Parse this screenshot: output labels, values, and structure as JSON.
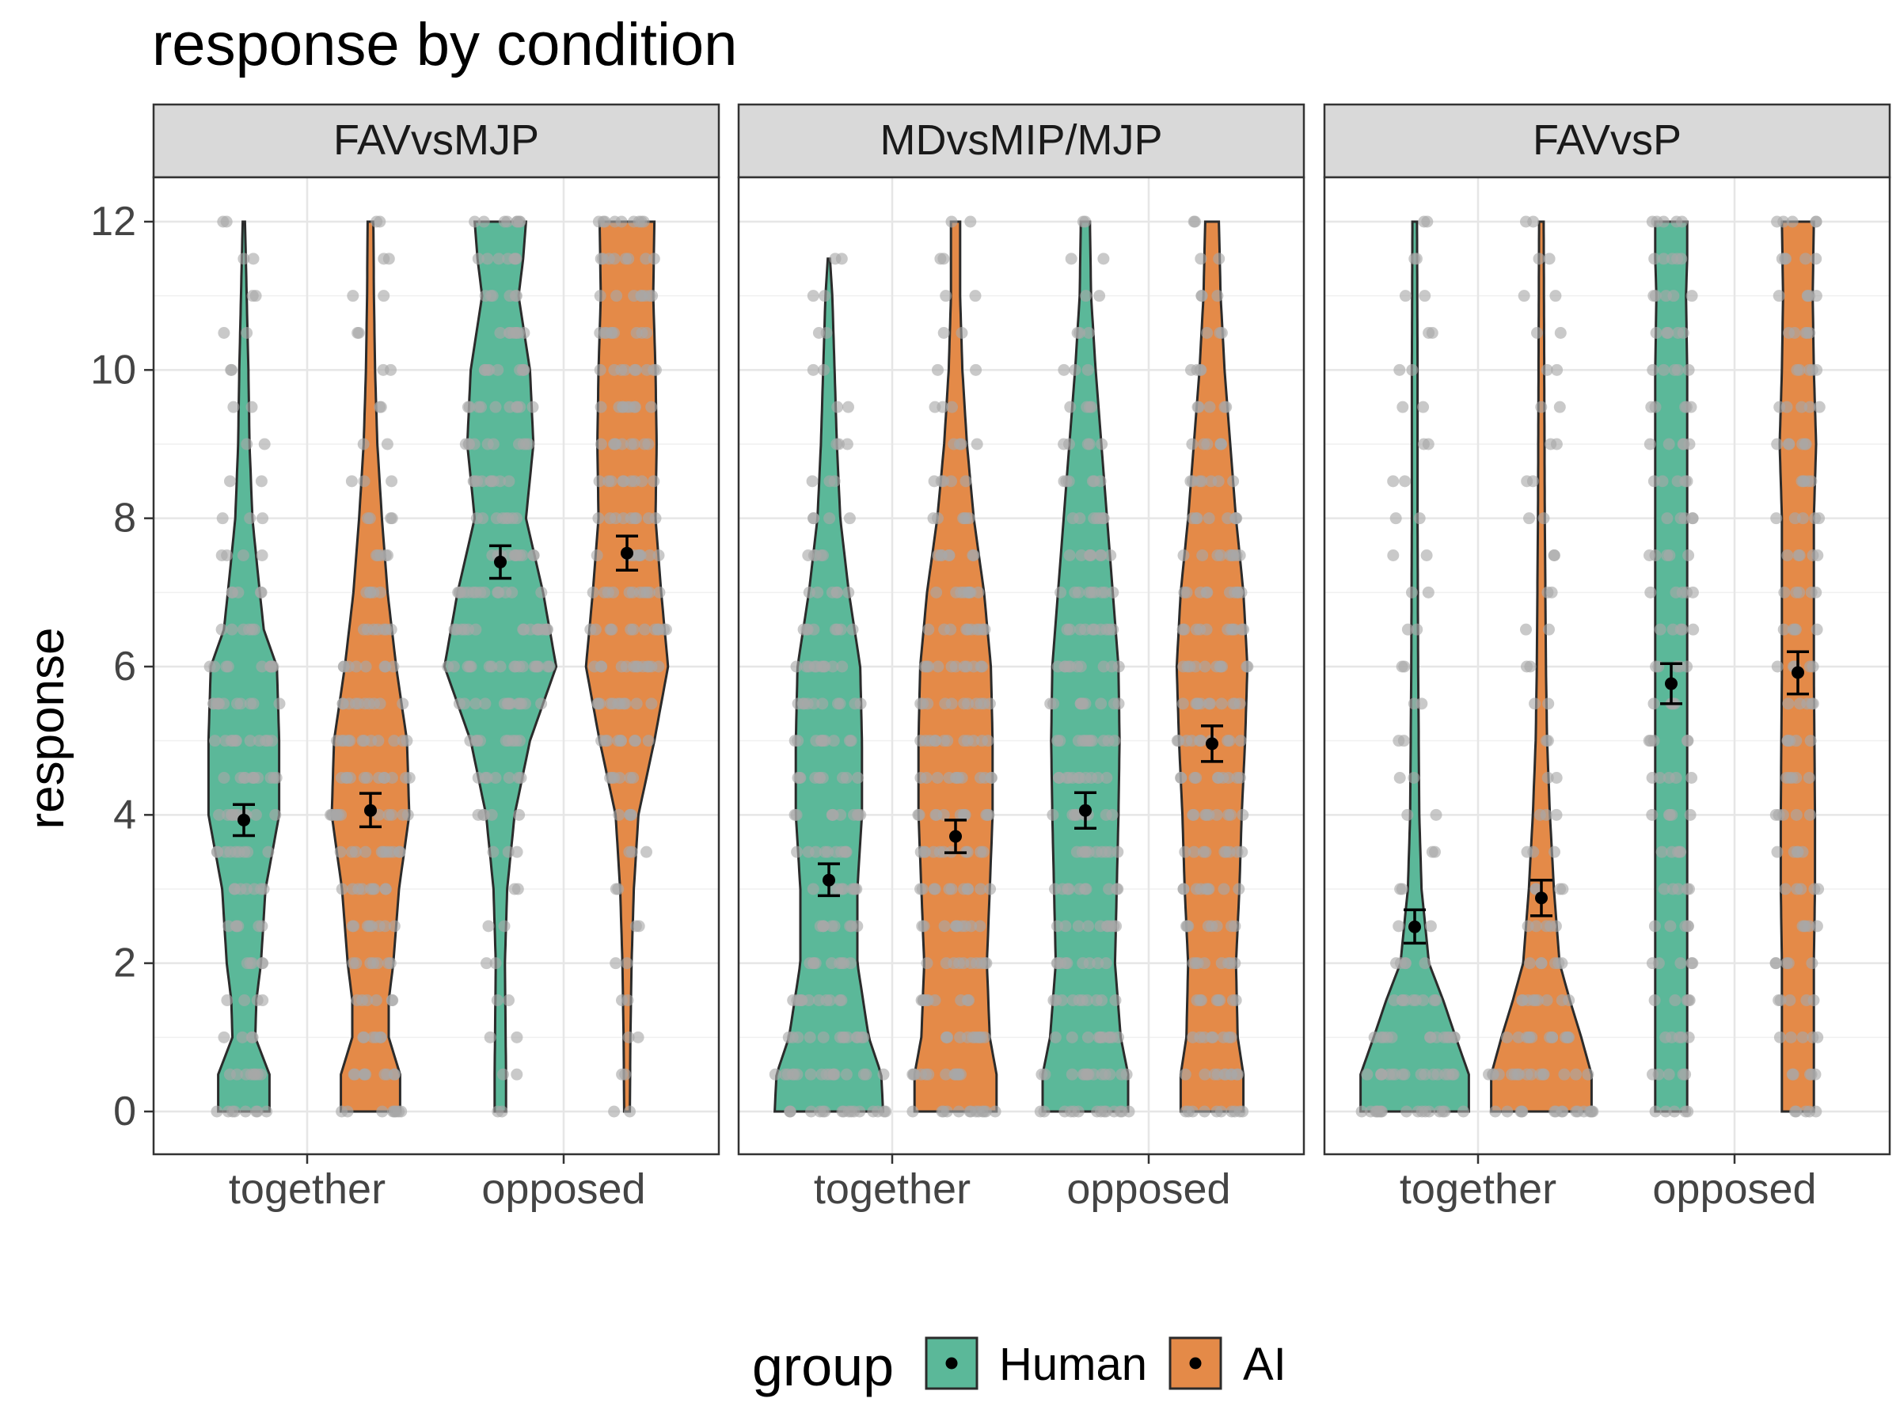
{
  "chart_data": {
    "type": "violin",
    "title": "response by condition",
    "xlabel": "",
    "ylabel": "response",
    "ylim": [
      -0.6,
      12.6
    ],
    "yticks": [
      0,
      2,
      4,
      6,
      8,
      10,
      12
    ],
    "categories": [
      "together",
      "opposed"
    ],
    "grid": true,
    "legend": {
      "title": "group",
      "placement": "bottom",
      "entries": [
        {
          "name": "Human",
          "color": "#5bb899"
        },
        {
          "name": "AI",
          "color": "#e48a48"
        }
      ]
    },
    "colors": {
      "Human": "#5bb899",
      "AI": "#e48a48",
      "outline": "#2b2b2b",
      "points": "#a8a8a8",
      "strip": "#d9d9d9"
    },
    "facets": [
      {
        "label": "FAVvsMJP",
        "series": [
          {
            "category": "together",
            "group": "Human",
            "mean": 3.93,
            "ci_low": 3.72,
            "ci_high": 4.14,
            "density": [
              [
                0,
                0.45
              ],
              [
                0.5,
                0.45
              ],
              [
                1,
                0.2
              ],
              [
                1.5,
                0.22
              ],
              [
                2,
                0.3
              ],
              [
                3,
                0.38
              ],
              [
                4,
                0.62
              ],
              [
                5,
                0.62
              ],
              [
                6,
                0.58
              ],
              [
                6.5,
                0.35
              ],
              [
                7,
                0.28
              ],
              [
                8,
                0.15
              ],
              [
                9,
                0.1
              ],
              [
                10,
                0.08
              ],
              [
                11,
                0.05
              ],
              [
                12,
                0.02
              ]
            ]
          },
          {
            "category": "together",
            "group": "AI",
            "mean": 4.06,
            "ci_low": 3.84,
            "ci_high": 4.29,
            "density": [
              [
                0,
                0.52
              ],
              [
                0.5,
                0.52
              ],
              [
                1,
                0.32
              ],
              [
                1.5,
                0.32
              ],
              [
                2,
                0.4
              ],
              [
                3,
                0.5
              ],
              [
                4,
                0.68
              ],
              [
                5,
                0.64
              ],
              [
                6,
                0.45
              ],
              [
                7,
                0.3
              ],
              [
                8,
                0.2
              ],
              [
                9,
                0.12
              ],
              [
                10,
                0.08
              ],
              [
                11,
                0.06
              ],
              [
                12,
                0.05
              ]
            ]
          },
          {
            "category": "opposed",
            "group": "Human",
            "mean": 7.41,
            "ci_low": 7.19,
            "ci_high": 7.63,
            "density": [
              [
                0,
                0.1
              ],
              [
                0.5,
                0.1
              ],
              [
                2,
                0.08
              ],
              [
                3,
                0.12
              ],
              [
                4,
                0.25
              ],
              [
                5,
                0.52
              ],
              [
                6,
                0.98
              ],
              [
                7,
                0.75
              ],
              [
                8,
                0.45
              ],
              [
                9,
                0.58
              ],
              [
                10,
                0.52
              ],
              [
                11,
                0.32
              ],
              [
                11.5,
                0.4
              ],
              [
                12,
                0.45
              ]
            ]
          },
          {
            "category": "opposed",
            "group": "AI",
            "mean": 7.53,
            "ci_low": 7.3,
            "ci_high": 7.76,
            "density": [
              [
                0,
                0.05
              ],
              [
                1,
                0.06
              ],
              [
                2,
                0.08
              ],
              [
                3,
                0.12
              ],
              [
                4,
                0.2
              ],
              [
                5,
                0.48
              ],
              [
                6,
                0.72
              ],
              [
                7,
                0.6
              ],
              [
                8,
                0.5
              ],
              [
                9,
                0.52
              ],
              [
                10,
                0.5
              ],
              [
                11,
                0.46
              ],
              [
                12,
                0.48
              ]
            ]
          }
        ]
      },
      {
        "label": "MDvsMIP/MJP",
        "series": [
          {
            "category": "together",
            "group": "Human",
            "mean": 3.12,
            "ci_low": 2.91,
            "ci_high": 3.34,
            "density": [
              [
                0,
                0.95
              ],
              [
                0.5,
                0.92
              ],
              [
                1,
                0.7
              ],
              [
                2,
                0.5
              ],
              [
                3,
                0.5
              ],
              [
                4,
                0.58
              ],
              [
                5,
                0.58
              ],
              [
                6,
                0.55
              ],
              [
                7,
                0.35
              ],
              [
                8,
                0.2
              ],
              [
                9,
                0.14
              ],
              [
                10,
                0.1
              ],
              [
                11,
                0.06
              ],
              [
                11.5,
                0.02
              ]
            ]
          },
          {
            "category": "together",
            "group": "AI",
            "mean": 3.71,
            "ci_low": 3.49,
            "ci_high": 3.93,
            "density": [
              [
                0,
                0.72
              ],
              [
                0.5,
                0.72
              ],
              [
                1,
                0.6
              ],
              [
                2,
                0.55
              ],
              [
                3,
                0.6
              ],
              [
                4,
                0.65
              ],
              [
                5,
                0.65
              ],
              [
                6,
                0.62
              ],
              [
                7,
                0.5
              ],
              [
                8,
                0.32
              ],
              [
                9,
                0.2
              ],
              [
                10,
                0.12
              ],
              [
                11,
                0.08
              ],
              [
                12,
                0.08
              ]
            ]
          },
          {
            "category": "opposed",
            "group": "Human",
            "mean": 4.06,
            "ci_low": 3.82,
            "ci_high": 4.3,
            "density": [
              [
                0,
                0.75
              ],
              [
                0.5,
                0.75
              ],
              [
                1,
                0.62
              ],
              [
                2,
                0.52
              ],
              [
                3,
                0.55
              ],
              [
                4,
                0.58
              ],
              [
                5,
                0.6
              ],
              [
                6,
                0.58
              ],
              [
                7,
                0.48
              ],
              [
                8,
                0.38
              ],
              [
                9,
                0.28
              ],
              [
                10,
                0.18
              ],
              [
                11,
                0.1
              ],
              [
                12,
                0.08
              ]
            ]
          },
          {
            "category": "opposed",
            "group": "AI",
            "mean": 4.96,
            "ci_low": 4.72,
            "ci_high": 5.2,
            "density": [
              [
                0,
                0.55
              ],
              [
                0.5,
                0.55
              ],
              [
                1,
                0.45
              ],
              [
                2,
                0.42
              ],
              [
                3,
                0.48
              ],
              [
                4,
                0.52
              ],
              [
                5,
                0.58
              ],
              [
                6,
                0.62
              ],
              [
                7,
                0.55
              ],
              [
                8,
                0.42
              ],
              [
                9,
                0.32
              ],
              [
                10,
                0.22
              ],
              [
                11,
                0.15
              ],
              [
                12,
                0.12
              ]
            ]
          }
        ]
      },
      {
        "label": "FAVvsP",
        "series": [
          {
            "category": "together",
            "group": "Human",
            "mean": 2.49,
            "ci_low": 2.27,
            "ci_high": 2.72,
            "density": [
              [
                0,
                0.95
              ],
              [
                0.5,
                0.95
              ],
              [
                1,
                0.72
              ],
              [
                1.5,
                0.5
              ],
              [
                2,
                0.25
              ],
              [
                3,
                0.12
              ],
              [
                4,
                0.08
              ],
              [
                5,
                0.07
              ],
              [
                6,
                0.06
              ],
              [
                8,
                0.05
              ],
              [
                10,
                0.05
              ],
              [
                12,
                0.04
              ]
            ]
          },
          {
            "category": "together",
            "group": "AI",
            "mean": 2.88,
            "ci_low": 2.64,
            "ci_high": 3.12,
            "density": [
              [
                0,
                0.88
              ],
              [
                0.5,
                0.88
              ],
              [
                1,
                0.7
              ],
              [
                1.5,
                0.5
              ],
              [
                2,
                0.32
              ],
              [
                3,
                0.22
              ],
              [
                4,
                0.15
              ],
              [
                5,
                0.1
              ],
              [
                6,
                0.08
              ],
              [
                8,
                0.06
              ],
              [
                10,
                0.05
              ],
              [
                12,
                0.04
              ]
            ]
          },
          {
            "category": "opposed",
            "group": "Human",
            "mean": 5.77,
            "ci_low": 5.5,
            "ci_high": 6.04,
            "density": [
              [
                0,
                0.28
              ],
              [
                2,
                0.28
              ],
              [
                4,
                0.28
              ],
              [
                6,
                0.28
              ],
              [
                8,
                0.28
              ],
              [
                10,
                0.28
              ],
              [
                11,
                0.26
              ],
              [
                11.5,
                0.28
              ],
              [
                12,
                0.28
              ]
            ]
          },
          {
            "category": "opposed",
            "group": "AI",
            "mean": 5.92,
            "ci_low": 5.63,
            "ci_high": 6.2,
            "density": [
              [
                0,
                0.28
              ],
              [
                2,
                0.28
              ],
              [
                3,
                0.3
              ],
              [
                4,
                0.3
              ],
              [
                6,
                0.28
              ],
              [
                8,
                0.28
              ],
              [
                9,
                0.32
              ],
              [
                10,
                0.28
              ],
              [
                11,
                0.26
              ],
              [
                12,
                0.28
              ]
            ]
          }
        ]
      }
    ]
  }
}
